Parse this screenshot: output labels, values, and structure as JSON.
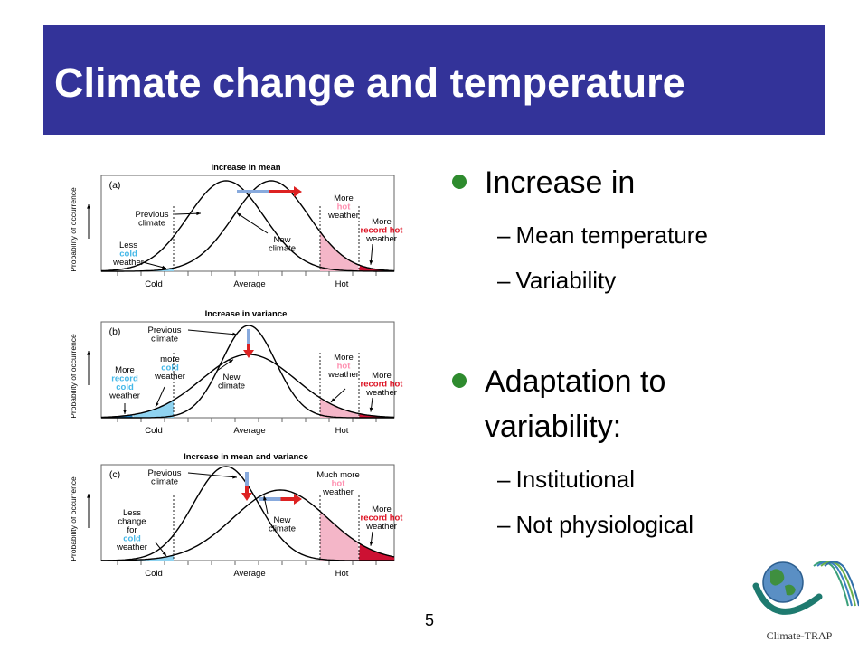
{
  "title": "Climate change and temperature",
  "page_number": "5",
  "bullets": [
    {
      "label": "Increase in",
      "sub": [
        "Mean temperature",
        "Variability"
      ]
    },
    {
      "label": "Adaptation to variability:",
      "label_lines": [
        "Adaptation to",
        "variability:"
      ],
      "sub": [
        "Institutional",
        "Not physiological"
      ]
    }
  ],
  "logo_text": "Climate-TRAP",
  "figure": {
    "ylabel": "Probability of occurrence",
    "panels": [
      {
        "letter": "(a)",
        "heading": "Increase in mean",
        "axis": [
          "Cold",
          "Average",
          "Hot"
        ],
        "labels": {
          "previous": [
            "Previous",
            "climate"
          ],
          "new": [
            "New",
            "climate"
          ],
          "cold": [
            "Less",
            "cold",
            "weather"
          ],
          "hot": [
            "More",
            "hot",
            "weather"
          ],
          "record": [
            "More",
            "record hot",
            "weather"
          ]
        }
      },
      {
        "letter": "(b)",
        "heading": "Increase in variance",
        "axis": [
          "Cold",
          "Average",
          "Hot"
        ],
        "labels": {
          "previous": [
            "Previous",
            "climate"
          ],
          "new": [
            "New",
            "climate"
          ],
          "record_cold": [
            "More",
            "record",
            "cold",
            "weather"
          ],
          "cold": [
            "more",
            "cold",
            "weather"
          ],
          "hot": [
            "More",
            "hot",
            "weather"
          ],
          "record": [
            "More",
            "record hot",
            "weather"
          ]
        }
      },
      {
        "letter": "(c)",
        "heading": "Increase in mean and variance",
        "axis": [
          "Cold",
          "Average",
          "Hot"
        ],
        "labels": {
          "previous": [
            "Previous",
            "climate"
          ],
          "new": [
            "New",
            "climate"
          ],
          "cold": [
            "Less",
            "change",
            "for",
            "cold",
            "weather"
          ],
          "hot": [
            "Much more",
            "hot",
            "weather"
          ],
          "record": [
            "More",
            "record hot",
            "weather"
          ]
        }
      }
    ]
  },
  "colors": {
    "title_bar": "#333399",
    "bullet": "#2e8b2e",
    "cold_fill": "#8fd3f0",
    "record_cold_fill": "#1e7fc0",
    "hot_fill": "#f4b6c8",
    "record_hot_fill": "#cc1133",
    "colored_word_cold": "#45b8e8",
    "colored_word_hot": "#ff8fb0",
    "record_word": "#dd1122",
    "shift_arrow_blue": "#88aadd",
    "shift_arrow_red": "#dd2222"
  }
}
